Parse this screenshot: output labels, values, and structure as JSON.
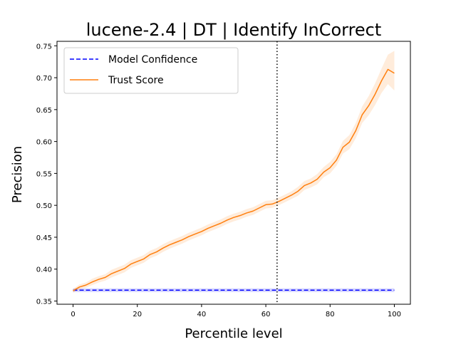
{
  "chart_data": {
    "type": "line",
    "title": "lucene-2.4 | DT | Identify InCorrect",
    "xlabel": "Percentile level",
    "ylabel": "Precision",
    "xlim": [
      -5,
      105
    ],
    "ylim": [
      0.345,
      0.757
    ],
    "xticks": [
      0,
      20,
      40,
      60,
      80,
      100
    ],
    "yticks": [
      0.35,
      0.4,
      0.45,
      0.5,
      0.55,
      0.6,
      0.65,
      0.7,
      0.75
    ],
    "grid": false,
    "legend_position": "top-left",
    "vline": {
      "x": 63.5,
      "style": "dotted",
      "color": "#000000"
    },
    "series": [
      {
        "name": "Model Confidence",
        "style": "dashed",
        "color": "#0000ff",
        "band_color": "#0000ff",
        "x": [
          0,
          100
        ],
        "y": [
          0.367,
          0.367
        ],
        "lower": [
          0.364,
          0.364
        ],
        "upper": [
          0.37,
          0.37
        ]
      },
      {
        "name": "Trust Score",
        "style": "solid",
        "color": "#ff7f0e",
        "band_color": "#ff7f0e",
        "x": [
          0,
          2,
          4,
          6,
          8,
          10,
          12,
          14,
          16,
          18,
          20,
          22,
          24,
          26,
          28,
          30,
          32,
          34,
          36,
          38,
          40,
          42,
          44,
          46,
          48,
          50,
          52,
          54,
          56,
          58,
          60,
          62,
          64,
          66,
          68,
          70,
          72,
          74,
          76,
          78,
          80,
          82,
          84,
          86,
          88,
          90,
          92,
          94,
          96,
          98,
          100
        ],
        "y": [
          0.366,
          0.372,
          0.375,
          0.38,
          0.384,
          0.387,
          0.393,
          0.397,
          0.401,
          0.408,
          0.412,
          0.416,
          0.423,
          0.427,
          0.433,
          0.438,
          0.442,
          0.446,
          0.451,
          0.455,
          0.459,
          0.464,
          0.468,
          0.472,
          0.477,
          0.481,
          0.484,
          0.488,
          0.491,
          0.496,
          0.501,
          0.502,
          0.506,
          0.511,
          0.516,
          0.522,
          0.531,
          0.535,
          0.541,
          0.552,
          0.559,
          0.571,
          0.591,
          0.599,
          0.617,
          0.642,
          0.656,
          0.674,
          0.695,
          0.713,
          0.707
        ],
        "lower": [
          0.363,
          0.368,
          0.371,
          0.375,
          0.379,
          0.382,
          0.387,
          0.391,
          0.395,
          0.402,
          0.406,
          0.41,
          0.417,
          0.421,
          0.427,
          0.432,
          0.436,
          0.44,
          0.445,
          0.449,
          0.453,
          0.458,
          0.462,
          0.466,
          0.471,
          0.475,
          0.478,
          0.482,
          0.485,
          0.49,
          0.495,
          0.496,
          0.5,
          0.505,
          0.51,
          0.515,
          0.524,
          0.528,
          0.533,
          0.544,
          0.55,
          0.562,
          0.581,
          0.588,
          0.605,
          0.629,
          0.641,
          0.657,
          0.676,
          0.69,
          0.68
        ],
        "upper": [
          0.369,
          0.376,
          0.379,
          0.385,
          0.389,
          0.392,
          0.399,
          0.403,
          0.407,
          0.414,
          0.418,
          0.422,
          0.429,
          0.433,
          0.439,
          0.444,
          0.448,
          0.452,
          0.457,
          0.461,
          0.465,
          0.47,
          0.474,
          0.478,
          0.483,
          0.487,
          0.49,
          0.494,
          0.497,
          0.502,
          0.507,
          0.508,
          0.512,
          0.517,
          0.522,
          0.529,
          0.538,
          0.542,
          0.549,
          0.56,
          0.568,
          0.58,
          0.601,
          0.61,
          0.629,
          0.655,
          0.671,
          0.691,
          0.714,
          0.736,
          0.742
        ]
      }
    ]
  }
}
